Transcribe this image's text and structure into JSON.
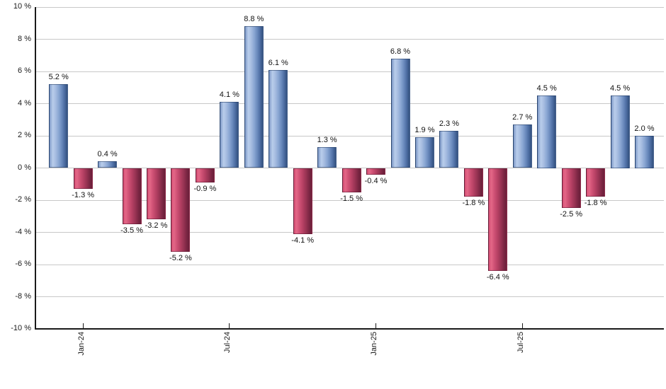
{
  "chart_data": {
    "type": "bar",
    "title": "",
    "xlabel": "",
    "ylabel": "",
    "unit": "%",
    "values": [
      5.2,
      -1.3,
      0.4,
      -3.5,
      -3.2,
      -5.2,
      -0.9,
      4.1,
      8.8,
      6.1,
      -4.1,
      1.3,
      -1.5,
      -0.4,
      6.8,
      1.9,
      2.3,
      -1.8,
      -6.4,
      2.7,
      4.5,
      -2.5,
      -1.8,
      4.5,
      2.0
    ],
    "bar_labels": [
      "5.2 %",
      "-1.3 %",
      "0.4 %",
      "-3.5 %",
      "-3.2 %",
      "-5.2 %",
      "-0.9 %",
      "4.1 %",
      "8.8 %",
      "6.1 %",
      "-4.1 %",
      "1.3 %",
      "-1.5 %",
      "-0.4 %",
      "6.8 %",
      "1.9 %",
      "2.3 %",
      "-1.8 %",
      "-6.4 %",
      "2.7 %",
      "4.5 %",
      "-2.5 %",
      "-1.8 %",
      "4.5 %",
      "2.0 %"
    ],
    "x_ticks": [
      {
        "bar_index": 1,
        "label": "Jan-24"
      },
      {
        "bar_index": 7,
        "label": "Jul-24"
      },
      {
        "bar_index": 13,
        "label": "Jan-25"
      },
      {
        "bar_index": 19,
        "label": "Jul-25"
      }
    ],
    "y_ticks": [
      {
        "value": 10,
        "label": "10 %"
      },
      {
        "value": 8,
        "label": "8 %"
      },
      {
        "value": 6,
        "label": "6 %"
      },
      {
        "value": 4,
        "label": "4 %"
      },
      {
        "value": 2,
        "label": "2 %"
      },
      {
        "value": 0,
        "label": "0 %"
      },
      {
        "value": -2,
        "label": "-2 %"
      },
      {
        "value": -4,
        "label": "-4 %"
      },
      {
        "value": -6,
        "label": "-6 %"
      },
      {
        "value": -8,
        "label": "-8 %"
      },
      {
        "value": -10,
        "label": "-10 %"
      }
    ],
    "ylim": [
      -10,
      10
    ],
    "grid": true,
    "legend_position": "none",
    "colors": {
      "positive_light": "#b9cdeb",
      "positive_mid": "#8ca8d4",
      "positive_dark": "#33517e",
      "negative_light": "#e36787",
      "negative_mid": "#b54063",
      "negative_dark": "#6b1f3a",
      "gridline": "#c8c8c8",
      "axis": "#1a1a1a",
      "text": "#111111",
      "background": "#ffffff"
    }
  }
}
